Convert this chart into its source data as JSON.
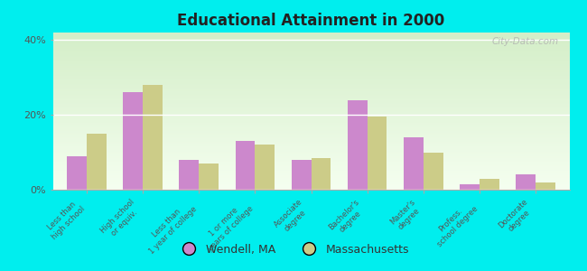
{
  "title": "Educational Attainment in 2000",
  "categories": [
    "Less than\nhigh school",
    "High school\nor equiv.",
    "Less than\n1 year of college",
    "1 or more\nyears of college",
    "Associate\ndegree",
    "Bachelor's\ndegree",
    "Master's\ndegree",
    "Profess.\nschool degree",
    "Doctorate\ndegree"
  ],
  "wendell_values": [
    9,
    26,
    8,
    13,
    8,
    24,
    14,
    1.5,
    4
  ],
  "mass_values": [
    15,
    28,
    7,
    12,
    8.5,
    19.5,
    10,
    3,
    2
  ],
  "wendell_color": "#cc88cc",
  "mass_color": "#cccc88",
  "plot_bg_top": "#d4eec8",
  "plot_bg_bottom": "#f5fff0",
  "outer_background": "#00eeee",
  "ylim": [
    0,
    42
  ],
  "ytick_labels": [
    "0%",
    "20%",
    "40%"
  ],
  "bar_width": 0.35,
  "legend_labels": [
    "Wendell, MA",
    "Massachusetts"
  ],
  "watermark": "City-Data.com"
}
